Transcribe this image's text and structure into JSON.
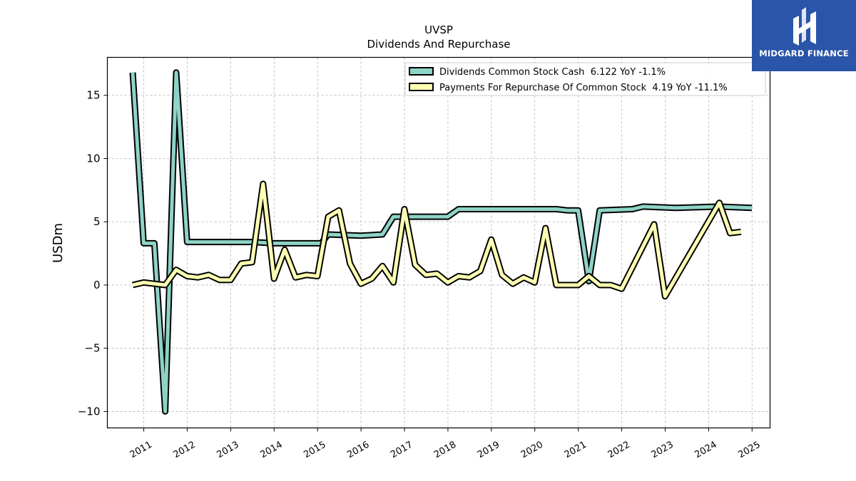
{
  "logo": {
    "text": "MIDGARD FINANCE",
    "bg": "#2a55a8"
  },
  "chart_data": {
    "type": "line",
    "title": "UVSP",
    "subtitle": "Dividends And Repurchase",
    "xlabel": "",
    "ylabel": "USDm",
    "xlim": [
      "2010-03-01",
      "2025-06-01"
    ],
    "ylim": [
      -11.3,
      18
    ],
    "yticks": [
      -10,
      -5,
      0,
      5,
      10,
      15
    ],
    "ytick_labels": [
      "−10",
      "−5",
      "0",
      "5",
      "10",
      "15"
    ],
    "xticks": [
      "2011",
      "2012",
      "2013",
      "2014",
      "2015",
      "2016",
      "2017",
      "2018",
      "2019",
      "2020",
      "2021",
      "2022",
      "2023",
      "2024",
      "2025"
    ],
    "grid": true,
    "legend_position": "top-right",
    "series": [
      {
        "name": "Dividends Common Stock Cash  6.122 YoY -1.1%",
        "color": "#8dd3c7",
        "points": [
          [
            "2010-09-30",
            16.8
          ],
          [
            "2010-12-31",
            3.3
          ],
          [
            "2011-03-31",
            3.3
          ],
          [
            "2011-06-30",
            -10.0
          ],
          [
            "2011-09-30",
            16.8
          ],
          [
            "2011-12-31",
            3.4
          ],
          [
            "2012-12-31",
            3.4
          ],
          [
            "2013-06-30",
            3.4
          ],
          [
            "2013-12-31",
            3.3
          ],
          [
            "2014-12-31",
            3.3
          ],
          [
            "2015-01-31",
            3.3
          ],
          [
            "2015-03-31",
            4.0
          ],
          [
            "2015-12-31",
            3.9
          ],
          [
            "2016-06-30",
            4.0
          ],
          [
            "2016-09-30",
            5.4
          ],
          [
            "2017-12-31",
            5.4
          ],
          [
            "2018-03-31",
            6.0
          ],
          [
            "2018-12-31",
            6.0
          ],
          [
            "2020-06-30",
            6.0
          ],
          [
            "2020-09-30",
            5.9
          ],
          [
            "2020-12-31",
            5.9
          ],
          [
            "2021-03-31",
            0.3
          ],
          [
            "2021-06-30",
            5.9
          ],
          [
            "2022-03-31",
            6.0
          ],
          [
            "2022-06-30",
            6.2
          ],
          [
            "2023-03-31",
            6.1
          ],
          [
            "2024-03-31",
            6.2
          ],
          [
            "2024-12-31",
            6.1
          ]
        ]
      },
      {
        "name": "Payments For Repurchase Of Common Stock  4.19 YoY -11.1%",
        "color": "#ffffb3",
        "points": [
          [
            "2010-09-30",
            0.0
          ],
          [
            "2010-12-31",
            0.2
          ],
          [
            "2011-03-31",
            0.1
          ],
          [
            "2011-06-30",
            0.0
          ],
          [
            "2011-09-30",
            1.2
          ],
          [
            "2011-12-31",
            0.7
          ],
          [
            "2012-03-31",
            0.6
          ],
          [
            "2012-06-30",
            0.8
          ],
          [
            "2012-09-30",
            0.4
          ],
          [
            "2012-12-31",
            0.4
          ],
          [
            "2013-03-31",
            1.7
          ],
          [
            "2013-06-30",
            1.8
          ],
          [
            "2013-09-30",
            8.0
          ],
          [
            "2013-12-31",
            0.5
          ],
          [
            "2014-03-31",
            2.8
          ],
          [
            "2014-06-30",
            0.6
          ],
          [
            "2014-09-30",
            0.8
          ],
          [
            "2014-12-31",
            0.7
          ],
          [
            "2015-03-31",
            5.4
          ],
          [
            "2015-06-30",
            5.9
          ],
          [
            "2015-09-30",
            1.7
          ],
          [
            "2015-12-31",
            0.1
          ],
          [
            "2016-03-31",
            0.5
          ],
          [
            "2016-06-30",
            1.5
          ],
          [
            "2016-09-30",
            0.2
          ],
          [
            "2016-12-31",
            6.0
          ],
          [
            "2017-03-31",
            1.6
          ],
          [
            "2017-06-30",
            0.8
          ],
          [
            "2017-09-30",
            0.9
          ],
          [
            "2017-12-31",
            0.2
          ],
          [
            "2018-03-31",
            0.7
          ],
          [
            "2018-06-30",
            0.6
          ],
          [
            "2018-09-30",
            1.1
          ],
          [
            "2018-12-31",
            3.6
          ],
          [
            "2019-03-31",
            0.8
          ],
          [
            "2019-06-30",
            0.1
          ],
          [
            "2019-09-30",
            0.6
          ],
          [
            "2019-12-31",
            0.2
          ],
          [
            "2020-03-31",
            4.5
          ],
          [
            "2020-06-30",
            0.0
          ],
          [
            "2020-09-30",
            0.0
          ],
          [
            "2020-12-31",
            0.0
          ],
          [
            "2021-03-31",
            0.7
          ],
          [
            "2021-06-30",
            0.0
          ],
          [
            "2021-09-30",
            0.0
          ],
          [
            "2021-12-31",
            -0.3
          ],
          [
            "2022-09-30",
            4.8
          ],
          [
            "2022-12-31",
            -0.9
          ],
          [
            "2024-03-31",
            6.5
          ],
          [
            "2024-06-30",
            4.1
          ],
          [
            "2024-09-30",
            4.2
          ]
        ]
      }
    ]
  }
}
